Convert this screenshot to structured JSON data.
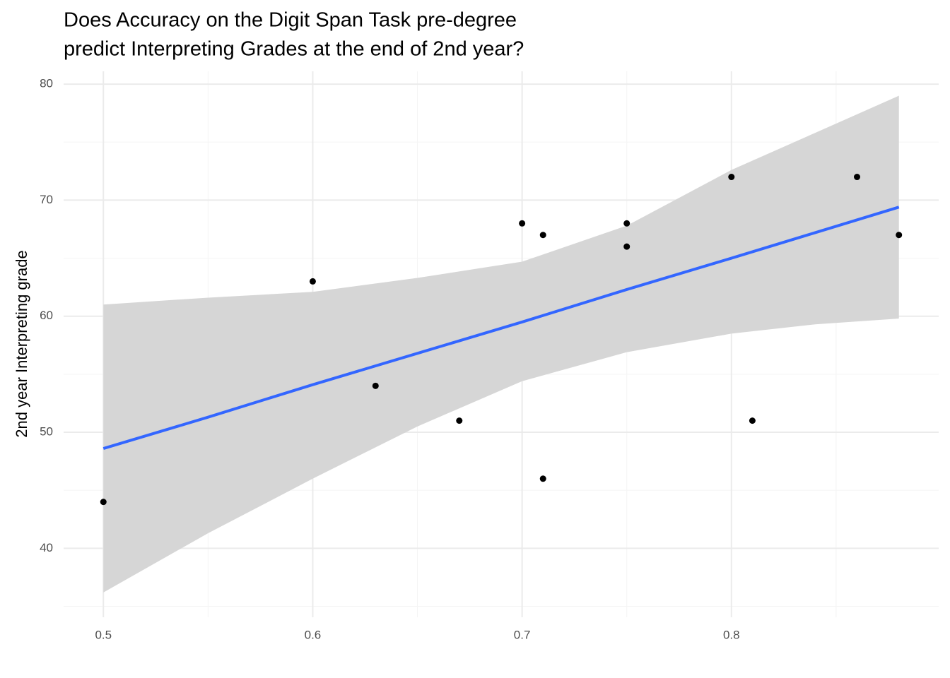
{
  "chart_data": {
    "type": "scatter",
    "title": [
      "Does Accuracy on the Digit Span Task pre-degree",
      "predict Interpreting Grades at the end of 2nd year?"
    ],
    "ylabel": "2nd year Interpreting grade",
    "series": [
      {
        "color": "#000000",
        "x": [
          0.5,
          0.6,
          0.63,
          0.67,
          0.7,
          0.71,
          0.71,
          0.75,
          0.75,
          0.8,
          0.81,
          0.86,
          0.88
        ],
        "values": [
          44,
          63,
          54,
          51,
          68,
          67,
          46,
          68,
          66,
          72,
          51,
          72,
          67
        ]
      }
    ],
    "fit": {
      "color": "#3366ff",
      "band_color": "#d6d6d6",
      "x": [
        0.5,
        0.55,
        0.6,
        0.65,
        0.7,
        0.75,
        0.8,
        0.84,
        0.88
      ],
      "values": [
        48.6,
        51.3,
        54.1,
        56.8,
        59.5,
        62.3,
        65.0,
        67.2,
        69.4
      ],
      "lower": [
        36.2,
        41.3,
        46.0,
        50.5,
        54.4,
        56.9,
        58.5,
        59.3,
        59.8
      ],
      "upper": [
        61.0,
        61.6,
        62.1,
        63.3,
        64.7,
        67.8,
        72.6,
        75.8,
        79.0
      ]
    },
    "xlim": [
      0.481,
      0.899
    ],
    "ylim": [
      34.06,
      81.1
    ],
    "xticks": [
      0.5,
      0.6,
      0.7,
      0.8
    ],
    "yticks": [
      40,
      50,
      60,
      70,
      80
    ],
    "xminor": [
      0.55,
      0.65,
      0.75,
      0.85
    ],
    "yminor": [
      35,
      45,
      55,
      65,
      75
    ],
    "grid": true
  }
}
